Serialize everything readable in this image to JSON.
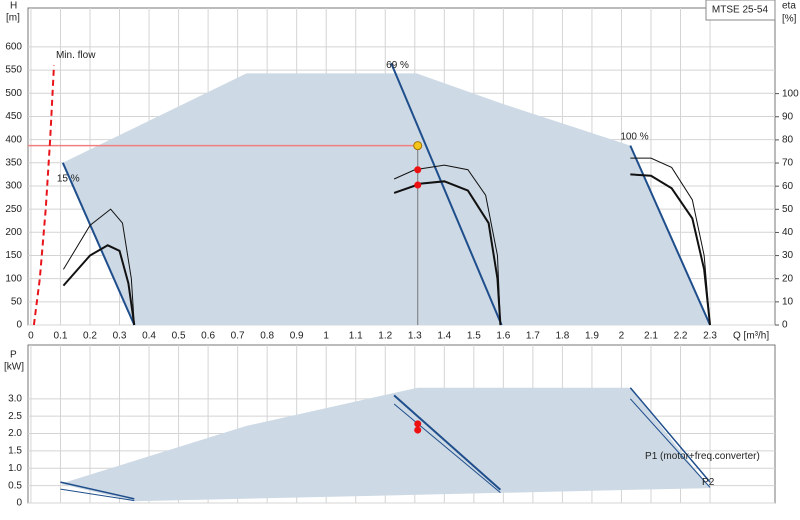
{
  "chart_data": [
    {
      "type": "line",
      "title": "MTSE 25-54",
      "ylabel": "H",
      "yunit": "[m]",
      "y2label": "eta",
      "y2unit": "[%]",
      "xlabel": "Q [m³/h]",
      "xlim": [
        -0.01,
        2.52
      ],
      "ylim": [
        0,
        684
      ],
      "y2lim": [
        0,
        137
      ],
      "grid": true,
      "xticks": [
        0,
        0.1,
        0.2,
        0.3,
        0.4,
        0.5,
        0.6,
        0.7,
        0.8,
        0.9,
        1,
        1.1,
        1.2,
        1.3,
        1.4,
        1.5,
        1.6,
        1.7,
        1.8,
        1.9,
        2,
        2.1,
        2.2,
        2.3
      ],
      "yticks": [
        0,
        50,
        100,
        150,
        200,
        250,
        300,
        350,
        400,
        450,
        500,
        550,
        600
      ],
      "y2ticks": [
        0,
        10,
        20,
        30,
        40,
        50,
        60,
        70,
        80,
        90,
        100
      ],
      "series": [
        {
          "kind": "area",
          "color": "#cdd9e4",
          "x": [
            0.108,
            0.73,
            1.306,
            1.594,
            2.03,
            2.3,
            0.35
          ],
          "values": [
            350,
            543,
            543,
            478,
            387,
            0,
            0
          ]
        },
        {
          "name": "Min. flow",
          "color": "#e8141a",
          "dash": true,
          "width": 2,
          "x": [
            0.01,
            0.03,
            0.05,
            0.065,
            0.078
          ],
          "values": [
            0,
            100,
            250,
            400,
            560
          ]
        },
        {
          "name": "15 %",
          "color": "#1f4e8c",
          "width": 2,
          "x": [
            0.108,
            0.35
          ],
          "values": [
            350,
            0
          ]
        },
        {
          "name": "69 %",
          "color": "#1f4e8c",
          "width": 2,
          "x": [
            1.22,
            1.594
          ],
          "values": [
            565,
            0
          ]
        },
        {
          "name": "100 %",
          "color": "#1f4e8c",
          "width": 2,
          "x": [
            2.03,
            2.3
          ],
          "values": [
            387,
            0
          ]
        },
        {
          "color": "#111111",
          "width": 1,
          "x": [
            0.11,
            0.2,
            0.27,
            0.31,
            0.34,
            0.35
          ],
          "values": [
            120,
            215,
            250,
            220,
            100,
            0
          ]
        },
        {
          "color": "#111111",
          "width": 2,
          "x": [
            0.11,
            0.2,
            0.26,
            0.3,
            0.33,
            0.35
          ],
          "values": [
            85,
            150,
            172,
            160,
            90,
            0
          ]
        },
        {
          "color": "#111111",
          "width": 1,
          "x": [
            1.23,
            1.3,
            1.4,
            1.48,
            1.54,
            1.58,
            1.59
          ],
          "values": [
            315,
            335,
            345,
            335,
            280,
            150,
            0
          ]
        },
        {
          "color": "#111111",
          "width": 2,
          "x": [
            1.23,
            1.32,
            1.4,
            1.48,
            1.55,
            1.58,
            1.59
          ],
          "values": [
            285,
            305,
            310,
            290,
            220,
            100,
            0
          ]
        },
        {
          "color": "#111111",
          "width": 1,
          "x": [
            2.03,
            2.1,
            2.17,
            2.24,
            2.28,
            2.3
          ],
          "values": [
            360,
            360,
            340,
            270,
            150,
            0
          ]
        },
        {
          "color": "#111111",
          "width": 2,
          "x": [
            2.03,
            2.1,
            2.17,
            2.24,
            2.28,
            2.3
          ],
          "values": [
            325,
            322,
            295,
            230,
            120,
            0
          ]
        }
      ],
      "duty": {
        "x": 1.31,
        "value": 387,
        "color": "#f5c518"
      },
      "points": {
        "color": "#ee1111",
        "x": [
          1.31,
          1.31
        ],
        "values": [
          335,
          302
        ]
      }
    },
    {
      "type": "line",
      "ylabel": "P",
      "yunit": "[kW]",
      "xlim": [
        -0.01,
        2.52
      ],
      "ylim": [
        0,
        4.55
      ],
      "grid": true,
      "yticks": [
        0,
        0.5,
        {
          "value": 1,
          "label": "1.0"
        },
        1.5,
        {
          "value": 2,
          "label": "2.0"
        },
        2.5,
        {
          "value": 3,
          "label": "3.0"
        }
      ],
      "series": [
        {
          "kind": "area",
          "color": "#cdd9e4",
          "x": [
            0.1,
            0.73,
            1.31,
            2.03,
            2.3,
            0.35
          ],
          "values": [
            0.55,
            2.22,
            3.32,
            3.32,
            0.43,
            0.05
          ]
        },
        {
          "color": "#1f4e8c",
          "width": 1.5,
          "x": [
            0.1,
            0.35
          ],
          "values": [
            0.6,
            0.12
          ]
        },
        {
          "color": "#1f4e8c",
          "width": 1,
          "x": [
            0.1,
            0.35
          ],
          "values": [
            0.4,
            0.07
          ]
        },
        {
          "color": "#1f4e8c",
          "width": 2,
          "x": [
            1.23,
            1.59
          ],
          "values": [
            3.1,
            0.38
          ]
        },
        {
          "color": "#1f4e8c",
          "width": 1,
          "x": [
            1.23,
            1.59
          ],
          "values": [
            2.85,
            0.3
          ]
        },
        {
          "name": "P1 (motor+freq.converter)",
          "color": "#1f4e8c",
          "width": 1.5,
          "x": [
            2.03,
            2.3
          ],
          "values": [
            3.32,
            0.6
          ]
        },
        {
          "name": "P2",
          "color": "#1f4e8c",
          "width": 1,
          "x": [
            2.03,
            2.3
          ],
          "values": [
            3.0,
            0.45
          ]
        }
      ],
      "points": {
        "color": "#ee1111",
        "x": [
          1.31,
          1.31
        ],
        "values": [
          2.28,
          2.1
        ]
      }
    }
  ]
}
